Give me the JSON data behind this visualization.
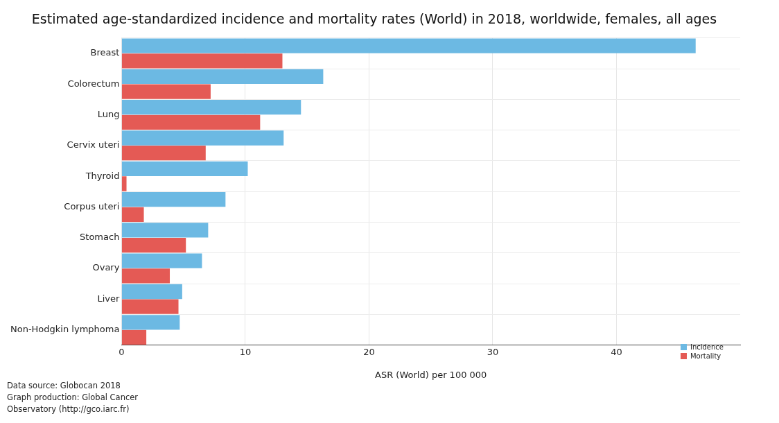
{
  "chart_data": {
    "type": "bar",
    "orientation": "horizontal",
    "title": "Estimated age-standardized incidence and mortality rates (World) in 2018, worldwide, females, all ages",
    "xlabel": "ASR (World) per 100 000",
    "categories": [
      "Breast",
      "Colorectum",
      "Lung",
      "Cervix uteri",
      "Thyroid",
      "Corpus uteri",
      "Stomach",
      "Ovary",
      "Liver",
      "Non-Hodgkin lymphoma"
    ],
    "series": [
      {
        "name": "Incidence",
        "color": "#6cb9e3",
        "values": [
          46.4,
          16.3,
          14.5,
          13.1,
          10.2,
          8.4,
          7.0,
          6.5,
          4.9,
          4.7
        ]
      },
      {
        "name": "Mortality",
        "color": "#e45a55",
        "values": [
          13.0,
          7.2,
          11.2,
          6.8,
          0.4,
          1.8,
          5.2,
          3.9,
          4.6,
          2.0
        ]
      }
    ],
    "xlim": [
      0,
      50
    ],
    "xticks": [
      0,
      10,
      20,
      30,
      40
    ],
    "grid": true,
    "legend": "bottom right",
    "annotations": [
      "Data source: Globocan 2018",
      "Graph production: Global Cancer Observatory (http://gco.iarc.fr)"
    ]
  }
}
